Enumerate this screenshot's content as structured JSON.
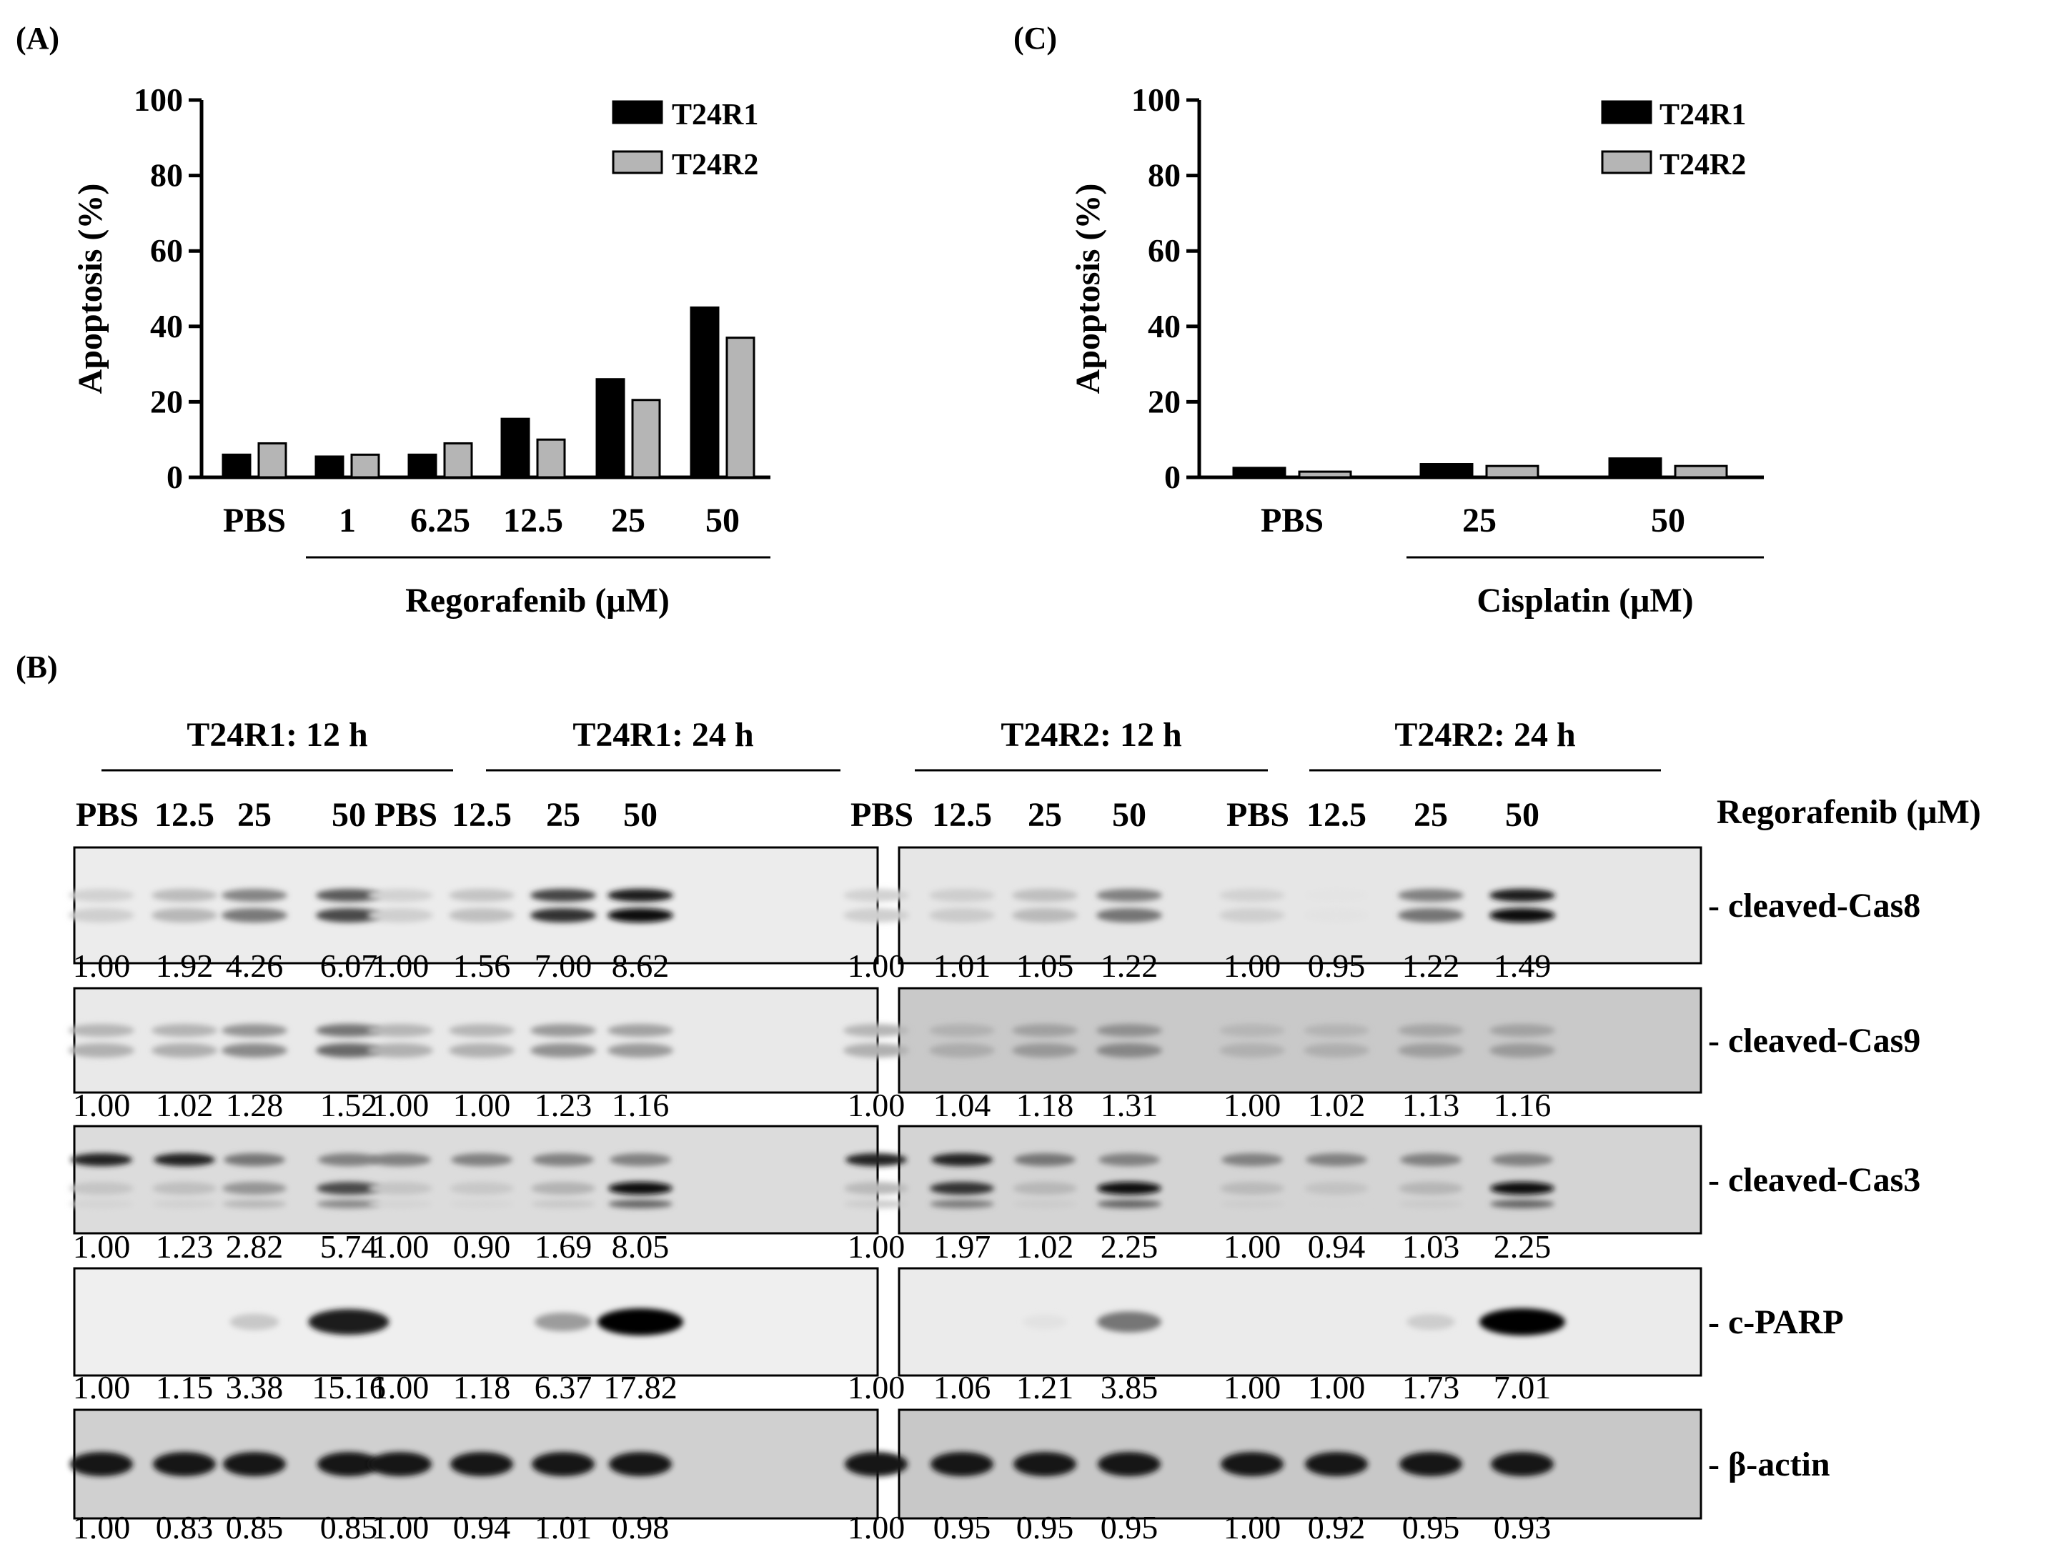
{
  "panel_labels": {
    "a": "(A)",
    "b": "(B)",
    "c": "(C)"
  },
  "chart_data": [
    {
      "panel": "(A)",
      "type": "bar",
      "title": "",
      "ylabel": "Apoptosis (%)",
      "xlabel": "Regorafenib (μM)",
      "ylim": [
        0,
        100
      ],
      "yticks": [
        "0",
        "20",
        "40",
        "60",
        "80",
        "100"
      ],
      "categories": [
        "PBS",
        "1",
        "6.25",
        "12.5",
        "25",
        "50"
      ],
      "series": [
        {
          "name": "T24R1",
          "color": "#000000",
          "values": [
            6,
            5.5,
            6,
            15.5,
            26,
            45
          ]
        },
        {
          "name": "T24R2",
          "color": "#b5b5b5",
          "values": [
            9,
            6,
            9,
            10,
            20.5,
            37
          ]
        }
      ],
      "legend": "top-right"
    },
    {
      "panel": "(C)",
      "type": "bar",
      "title": "",
      "ylabel": "Apoptosis (%)",
      "xlabel": "Cisplatin (μM)",
      "ylim": [
        0,
        100
      ],
      "yticks": [
        "0",
        "20",
        "40",
        "60",
        "80",
        "100"
      ],
      "categories": [
        "PBS",
        "25",
        "50"
      ],
      "series": [
        {
          "name": "T24R1",
          "color": "#000000",
          "values": [
            2.5,
            3.5,
            5
          ]
        },
        {
          "name": "T24R2",
          "color": "#b5b5b5",
          "values": [
            1.5,
            3,
            3
          ]
        }
      ],
      "legend": "top-right"
    }
  ],
  "western_blot": {
    "group_titles": [
      "T24R1: 12 h",
      "T24R1: 24 h",
      "T24R2: 12 h",
      "T24R2: 24 h"
    ],
    "lane_labels": [
      "PBS",
      "12.5",
      "25",
      "50",
      "PBS",
      "12.5",
      "25",
      "50",
      "PBS",
      "12.5",
      "25",
      "50",
      "PBS",
      "12.5",
      "25",
      "50"
    ],
    "treatment_label": "Regorafenib (μM)",
    "rows": [
      {
        "label": "- cleaved-Cas8",
        "left": [
          "1.00",
          "1.92",
          "4.26",
          "6.07",
          "1.00",
          "1.56",
          "7.00",
          "8.62"
        ],
        "right": [
          "1.00",
          "1.01",
          "1.05",
          "1.22",
          "1.00",
          "0.95",
          "1.22",
          "1.49"
        ]
      },
      {
        "label": "- cleaved-Cas9",
        "left": [
          "1.00",
          "1.02",
          "1.28",
          "1.52",
          "1.00",
          "1.00",
          "1.23",
          "1.16"
        ],
        "right": [
          "1.00",
          "1.04",
          "1.18",
          "1.31",
          "1.00",
          "1.02",
          "1.13",
          "1.16"
        ]
      },
      {
        "label": "- cleaved-Cas3",
        "left": [
          "1.00",
          "1.23",
          "2.82",
          "5.74",
          "1.00",
          "0.90",
          "1.69",
          "8.05"
        ],
        "right": [
          "1.00",
          "1.97",
          "1.02",
          "2.25",
          "1.00",
          "0.94",
          "1.03",
          "2.25"
        ]
      },
      {
        "label": "- c-PARP",
        "left": [
          "1.00",
          "1.15",
          "3.38",
          "15.16",
          "1.00",
          "1.18",
          "6.37",
          "17.82"
        ],
        "right": [
          "1.00",
          "1.06",
          "1.21",
          "3.85",
          "1.00",
          "1.00",
          "1.73",
          "7.01"
        ]
      },
      {
        "label": "- β-actin",
        "left": [
          "1.00",
          "0.83",
          "0.85",
          "0.85",
          "1.00",
          "0.94",
          "1.01",
          "0.98"
        ],
        "right": [
          "1.00",
          "0.95",
          "0.95",
          "0.95",
          "1.00",
          "0.92",
          "0.95",
          "0.93"
        ]
      }
    ]
  }
}
